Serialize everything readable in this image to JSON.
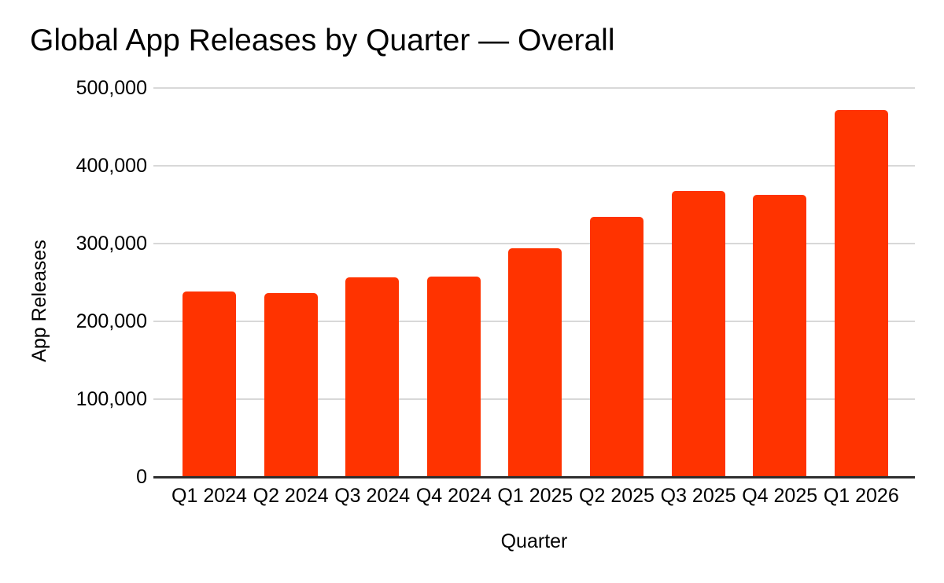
{
  "chart_data": {
    "type": "bar",
    "title": "Global App Releases by Quarter — Overall",
    "xlabel": "Quarter",
    "ylabel": "App Releases",
    "categories": [
      "Q1 2024",
      "Q2 2024",
      "Q3 2024",
      "Q4 2024",
      "Q1 2025",
      "Q2 2025",
      "Q3 2025",
      "Q4 2025",
      "Q1 2026"
    ],
    "values": [
      238000,
      236000,
      257000,
      258000,
      294000,
      334000,
      368000,
      363000,
      472000
    ],
    "ylim": [
      0,
      500000
    ],
    "yticks": [
      {
        "value": 0,
        "label": "0"
      },
      {
        "value": 100000,
        "label": "100,000"
      },
      {
        "value": 200000,
        "label": "200,000"
      },
      {
        "value": 300000,
        "label": "300,000"
      },
      {
        "value": 400000,
        "label": "400,000"
      },
      {
        "value": 500000,
        "label": "500,000"
      }
    ],
    "grid": true,
    "legend": false,
    "colors": {
      "bar": "#FF3300",
      "gridline": "#D8D8D8",
      "axis_line": "#2E2E2E",
      "text": "#000000",
      "background": "#FFFFFF"
    }
  }
}
